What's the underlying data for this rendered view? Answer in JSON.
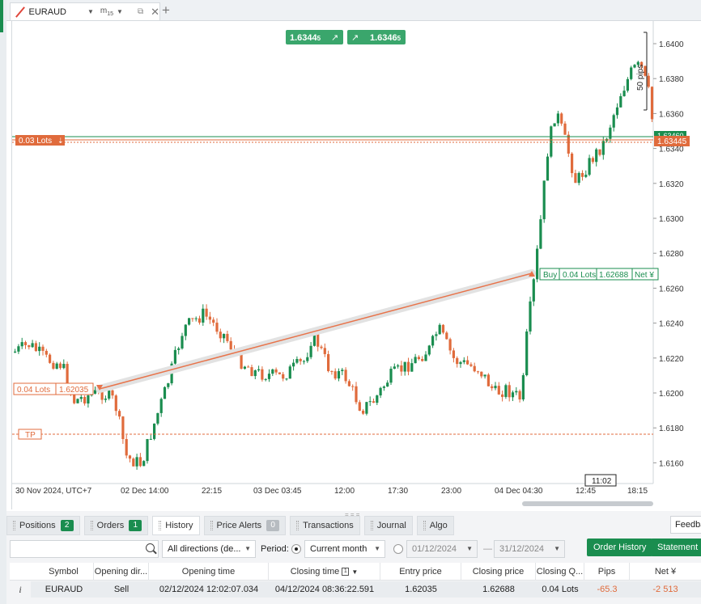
{
  "tab": {
    "symbol": "EURAUD",
    "timeframe": "m",
    "timeframe_sub": "15"
  },
  "quotes": {
    "sell_price": "1.6344",
    "sell_sup": "5",
    "buy_price": "1.6346",
    "buy_sup": "5"
  },
  "chart": {
    "pips_marker": "50 pips",
    "price_labels": [
      "1.6400",
      "1.6380",
      "1.6360",
      "1.6340",
      "1.6320",
      "1.6300",
      "1.6280",
      "1.6260",
      "1.6240",
      "1.6220",
      "1.6200",
      "1.6180",
      "1.6160"
    ],
    "green_level_label": "1.63460",
    "current_price_label": "1.63445",
    "lots_marker": "0.03 Lots",
    "entry_lots": "0.04 Lots",
    "entry_price": "1.62035",
    "exit_side": "Buy",
    "exit_lots": "0.04 Lots",
    "exit_price": "1.62688",
    "exit_net": "Net ¥",
    "tp_label": "TP",
    "time_labels": [
      "30 Nov 2024, UTC+7",
      "02 Dec 14:00",
      "22:15",
      "03 Dec 03:45",
      "12:00",
      "17:30",
      "23:00",
      "04 Dec 04:30",
      "12:45",
      "18:15"
    ],
    "cursor_time": "11:02",
    "colors": {
      "up": "#1a8d4f",
      "down": "#e06b3c",
      "line": "#e8734a"
    }
  },
  "panel": {
    "tabs": [
      {
        "label": "Positions",
        "badge": "2"
      },
      {
        "label": "Orders",
        "badge": "1"
      },
      {
        "label": "History",
        "badge": ""
      },
      {
        "label": "Price Alerts",
        "badge": "0"
      },
      {
        "label": "Transactions",
        "badge": ""
      },
      {
        "label": "Journal",
        "badge": ""
      },
      {
        "label": "Algo",
        "badge": ""
      }
    ],
    "feedback": "Feedback",
    "filters": {
      "direction": "All directions (de...",
      "period_label": "Period:",
      "period": "Current month",
      "from": "01/12/2024",
      "to": "31/12/2024",
      "order_history": "Order History",
      "statement": "Statement"
    },
    "columns": [
      "Symbol",
      "Opening dir...",
      "Opening time",
      "Closing time",
      "Entry price",
      "Closing price",
      "Closing Q...",
      "Pips",
      "Net ¥"
    ],
    "closing_time_sort": "1",
    "row": {
      "symbol": "EURAUD",
      "direction": "Sell",
      "opening_time": "02/12/2024 12:02:07.034",
      "closing_time": "04/12/2024 08:36:22.591",
      "entry": "1.62035",
      "closing": "1.62688",
      "qty": "0.04 Lots",
      "pips": "-65.3",
      "net": "-2 513"
    }
  }
}
